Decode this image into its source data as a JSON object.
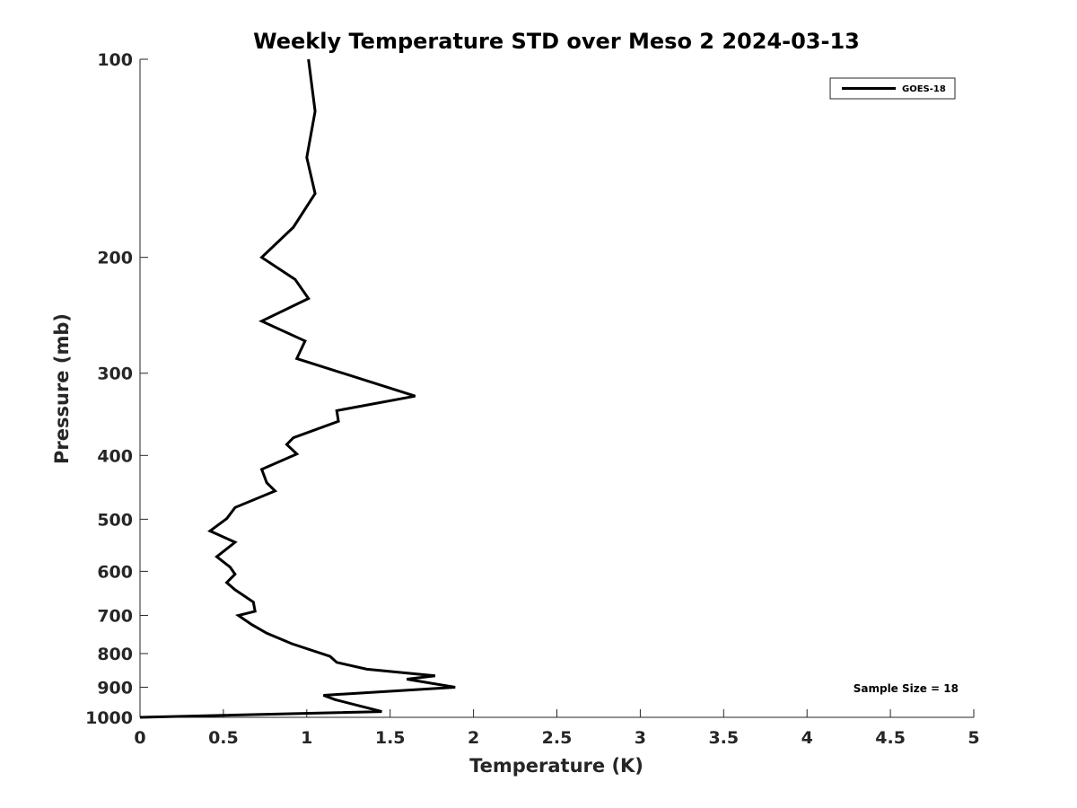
{
  "chart_data": {
    "type": "line",
    "title": "Weekly Temperature STD over Meso 2 2024-03-13",
    "xlabel": "Temperature (K)",
    "ylabel": "Pressure (mb)",
    "xlim": [
      0,
      5
    ],
    "ylim": [
      100,
      1000
    ],
    "yscale": "log",
    "yreversed": true,
    "grid": false,
    "x_ticks": [
      0,
      0.5,
      1,
      1.5,
      2,
      2.5,
      3,
      3.5,
      4,
      4.5,
      5
    ],
    "x_tick_labels": [
      "0",
      "0.5",
      "1",
      "1.5",
      "2",
      "2.5",
      "3",
      "3.5",
      "4",
      "4.5",
      "5"
    ],
    "y_ticks": [
      100,
      200,
      300,
      400,
      500,
      600,
      700,
      800,
      900,
      1000
    ],
    "y_tick_labels": [
      "100",
      "200",
      "300",
      "400",
      "500",
      "600",
      "700",
      "800",
      "900",
      "1000"
    ],
    "legend": {
      "position": "top-right",
      "entries": [
        "GOES-18"
      ]
    },
    "annotation": "Sample Size = 18",
    "series": [
      {
        "name": "GOES-18",
        "color": "#000000",
        "x": [
          1.01,
          1.05,
          1.0,
          1.05,
          0.92,
          0.73,
          0.93,
          1.01,
          0.73,
          0.99,
          0.94,
          1.65,
          1.18,
          1.19,
          0.92,
          0.88,
          0.94,
          0.73,
          0.76,
          0.81,
          0.57,
          0.52,
          0.42,
          0.57,
          0.46,
          0.54,
          0.57,
          0.52,
          0.57,
          0.68,
          0.69,
          0.59,
          0.67,
          0.76,
          0.91,
          1.14,
          1.18,
          1.36,
          1.77,
          1.6,
          1.89,
          1.1,
          1.17,
          1.45,
          0.0
        ],
        "y": [
          100,
          120,
          141,
          160,
          180,
          200,
          216,
          231,
          250,
          268,
          285,
          325,
          342,
          355,
          376,
          385,
          398,
          420,
          440,
          453,
          480,
          499,
          521,
          542,
          570,
          591,
          606,
          624,
          640,
          668,
          690,
          700,
          723,
          745,
          773,
          808,
          825,
          845,
          865,
          875,
          900,
          926,
          940,
          980,
          1000
        ]
      }
    ]
  }
}
